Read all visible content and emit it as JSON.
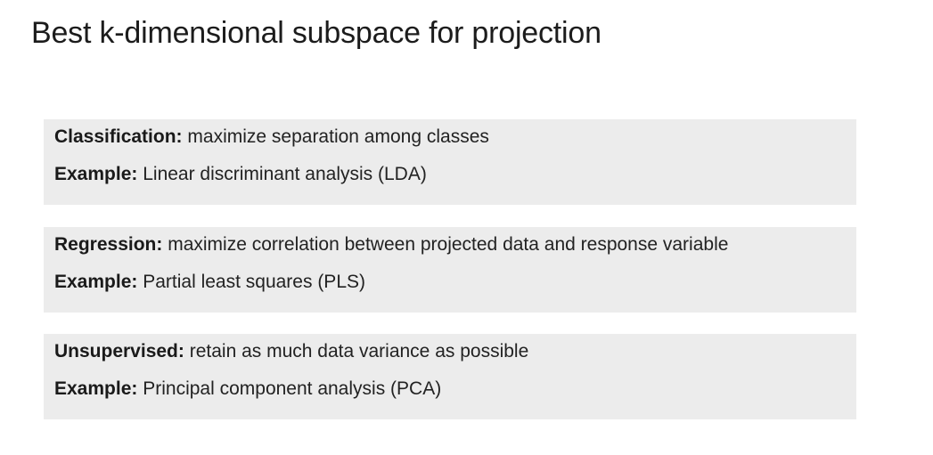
{
  "title": "Best k-dimensional subspace for projection",
  "cards": [
    {
      "term": "Classification:",
      "description": "maximize separation among classes",
      "example_label": "Example:",
      "example": "Linear discriminant analysis (LDA)"
    },
    {
      "term": "Regression:",
      "description": "maximize correlation between projected data and response variable",
      "example_label": "Example:",
      "example": "Partial least squares (PLS)"
    },
    {
      "term": "Unsupervised:",
      "description": "retain as much data variance as possible",
      "example_label": "Example:",
      "example": "Principal component analysis (PCA)"
    }
  ]
}
